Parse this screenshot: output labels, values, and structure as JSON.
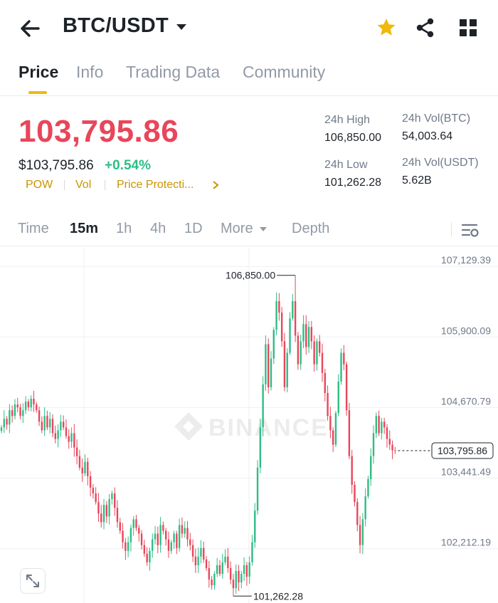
{
  "header": {
    "pair": "BTC/USDT",
    "favorite_color": "#f0b90b"
  },
  "tabs": [
    {
      "label": "Price",
      "active": true
    },
    {
      "label": "Info",
      "active": false
    },
    {
      "label": "Trading Data",
      "active": false
    },
    {
      "label": "Community",
      "active": false
    }
  ],
  "price": {
    "last": "103,795.86",
    "usd": "$103,795.86",
    "change": "+0.54%",
    "tags": [
      "POW",
      "Vol",
      "Price Protecti..."
    ]
  },
  "stats": {
    "high_label": "24h High",
    "high_value": "106,850.00",
    "low_label": "24h Low",
    "low_value": "101,262.28",
    "vol_btc_label": "24h Vol(BTC)",
    "vol_btc_value": "54,003.64",
    "vol_usdt_label": "24h Vol(USDT)",
    "vol_usdt_value": "5.62B"
  },
  "chart_tabs": [
    {
      "label": "Time",
      "active": false
    },
    {
      "label": "15m",
      "active": true
    },
    {
      "label": "1h",
      "active": false
    },
    {
      "label": "4h",
      "active": false
    },
    {
      "label": "1D",
      "active": false
    },
    {
      "label": "More",
      "active": false
    },
    {
      "label": "Depth",
      "active": false
    }
  ],
  "chart_data": {
    "type": "candlestick",
    "y_ticks": [
      "107,129.39",
      "105,900.09",
      "104,670.79",
      "103,441.49",
      "102,212.19"
    ],
    "y_tick_values": [
      107129.39,
      105900.09,
      104670.79,
      103441.49,
      102212.19
    ],
    "ylim": [
      101191.3,
      107342.6
    ],
    "high_marker": {
      "label": "106,850.00",
      "value": 106850.0
    },
    "low_marker": {
      "label": "101,262.28",
      "value": 101262.28
    },
    "current_price": {
      "label": "103,795.86",
      "value": 103795.86
    },
    "watermark": "BINANCE",
    "up_color": "#2ebd85",
    "down_color": "#e8465a",
    "closes": [
      104200,
      104350,
      104250,
      104500,
      104400,
      104600,
      104550,
      104400,
      104500,
      104650,
      104550,
      104700,
      104600,
      104500,
      104300,
      104150,
      104400,
      104200,
      104350,
      104100,
      104000,
      104150,
      104300,
      104200,
      104050,
      103950,
      104100,
      103850,
      103700,
      103500,
      103400,
      103600,
      103350,
      103150,
      103050,
      102900,
      102700,
      102550,
      102850,
      102650,
      102950,
      103050,
      102800,
      102550,
      102400,
      102200,
      102050,
      102200,
      102450,
      102600,
      102450,
      102350,
      102150,
      102000,
      101850,
      102050,
      102250,
      102350,
      102150,
      102500,
      102400,
      102250,
      102050,
      102200,
      102350,
      102100,
      102500,
      102350,
      102450,
      102250,
      102150,
      101950,
      101800,
      101950,
      102100,
      101900,
      101750,
      101550,
      101450,
      101650,
      101800,
      101650,
      101850,
      101950,
      101750,
      101550,
      101400,
      101700,
      101500,
      101650,
      101800,
      101600,
      101850,
      102200,
      102750,
      103500,
      104200,
      104950,
      105650,
      104900,
      105400,
      105900,
      106400,
      106200,
      105700,
      104900,
      105500,
      106100,
      106400,
      105800,
      105300,
      105700,
      106000,
      105600,
      105950,
      105700,
      105300,
      105700,
      105500,
      105150,
      104800,
      104400,
      104150,
      103900,
      104450,
      105000,
      105500,
      105300,
      104500,
      103700,
      103200,
      102900,
      102500,
      102150,
      102600,
      103000,
      103300,
      103700,
      104100,
      104400,
      104100,
      104300,
      104200,
      104000,
      103900,
      103800,
      103796
    ]
  }
}
